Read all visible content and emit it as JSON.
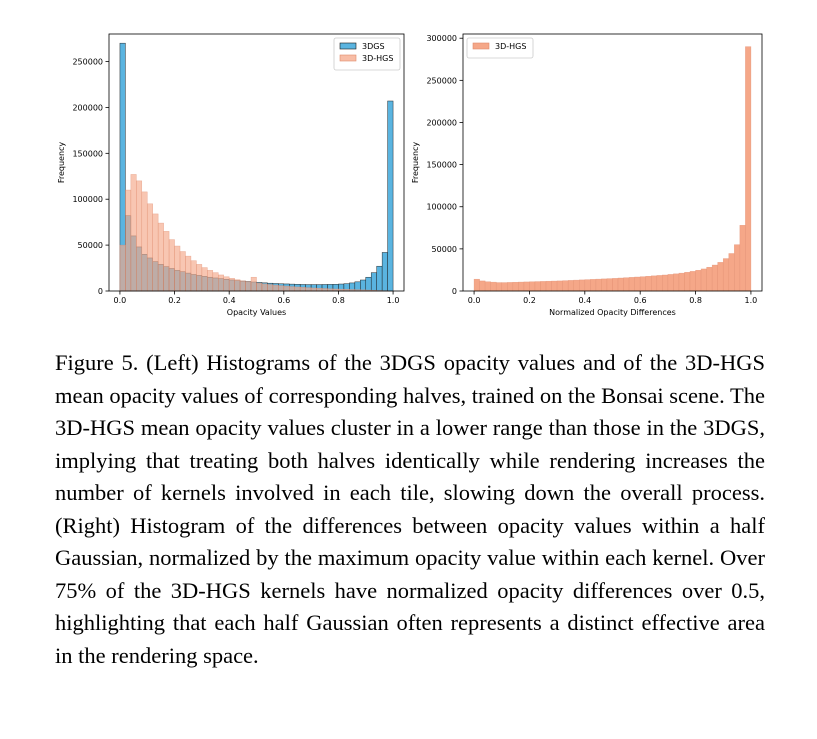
{
  "chart_data": [
    {
      "type": "bar",
      "title": "",
      "xlabel": "Opacity Values",
      "ylabel": "Frequency",
      "xlim": [
        -0.04,
        1.04
      ],
      "ylim": [
        0,
        280000
      ],
      "xticks": [
        0.0,
        0.2,
        0.4,
        0.6,
        0.8,
        1.0
      ],
      "xtick_labels": [
        "0.0",
        "0.2",
        "0.4",
        "0.6",
        "0.8",
        "1.0"
      ],
      "yticks": [
        0,
        50000,
        100000,
        150000,
        200000,
        250000
      ],
      "ytick_labels": [
        "0",
        "50000",
        "100000",
        "150000",
        "200000",
        "250000"
      ],
      "bin_start": 0.0,
      "bin_width": 0.02,
      "legend": "top-right",
      "series": [
        {
          "name": "3DGS",
          "color": "#5ab4e0",
          "values": [
            270000,
            82000,
            60000,
            48000,
            40000,
            36000,
            32000,
            29000,
            26500,
            24500,
            22500,
            21000,
            19500,
            18000,
            17000,
            16000,
            15000,
            14200,
            13500,
            12800,
            12000,
            11300,
            10800,
            10300,
            9800,
            9300,
            8900,
            8500,
            8200,
            7900,
            7700,
            7500,
            7300,
            7100,
            7000,
            7000,
            7000,
            7100,
            7200,
            7300,
            7600,
            8000,
            8800,
            10000,
            12000,
            15000,
            20000,
            27000,
            42000,
            207000
          ]
        },
        {
          "name": "3D-HGS",
          "color": "#f5a788",
          "values": [
            50000,
            110000,
            127000,
            120000,
            108000,
            95000,
            84000,
            74000,
            65000,
            56000,
            49000,
            43000,
            38000,
            33000,
            29000,
            25500,
            22500,
            20000,
            17500,
            15500,
            13800,
            12300,
            11000,
            10000,
            15000,
            8500,
            7700,
            7000,
            6400,
            5800,
            5300,
            4800,
            4400,
            4000,
            3600,
            3300,
            3000,
            2700,
            2400,
            2200,
            2000,
            1800,
            1600,
            1400,
            1200,
            1000,
            800,
            600,
            400,
            200
          ]
        }
      ]
    },
    {
      "type": "bar",
      "title": "",
      "xlabel": "Normalized Opacity Differences",
      "ylabel": "Frequency",
      "xlim": [
        -0.04,
        1.04
      ],
      "ylim": [
        0,
        305000
      ],
      "xticks": [
        0.0,
        0.2,
        0.4,
        0.6,
        0.8,
        1.0
      ],
      "xtick_labels": [
        "0.0",
        "0.2",
        "0.4",
        "0.6",
        "0.8",
        "1.0"
      ],
      "yticks": [
        0,
        50000,
        100000,
        150000,
        200000,
        250000,
        300000
      ],
      "ytick_labels": [
        "0",
        "50000",
        "100000",
        "150000",
        "200000",
        "250000",
        "300000"
      ],
      "bin_start": 0.0,
      "bin_width": 0.02,
      "legend": "top-left",
      "series": [
        {
          "name": "3D-HGS",
          "color": "#f5a788",
          "values": [
            14000,
            12000,
            11000,
            10500,
            10000,
            10000,
            10200,
            10400,
            10600,
            10800,
            11000,
            11200,
            11400,
            11600,
            11800,
            12000,
            12300,
            12600,
            12900,
            13200,
            13500,
            13800,
            14100,
            14400,
            14700,
            15000,
            15400,
            15800,
            16200,
            16600,
            17000,
            17500,
            18000,
            18500,
            19000,
            19700,
            20400,
            21200,
            22200,
            23300,
            24600,
            26200,
            28200,
            30800,
            34000,
            38500,
            44500,
            55000,
            78000,
            290000
          ]
        }
      ]
    }
  ],
  "caption": "Figure 5. (Left) Histograms of the 3DGS opacity values and of the 3D-HGS mean opacity values of corresponding halves, trained on the Bonsai scene. The 3D-HGS mean opacity values cluster in a lower range than those in the 3DGS, implying that treating both halves identically while rendering increases the number of kernels involved in each tile, slowing down the overall process. (Right) Histogram of the differences between opacity values within a half Gaussian, normalized by the maximum opacity value within each kernel. Over 75% of the 3D-HGS kernels have normalized opacity differences over 0.5, highlighting that each half Gaussian often represents a distinct effective area in the rendering space."
}
